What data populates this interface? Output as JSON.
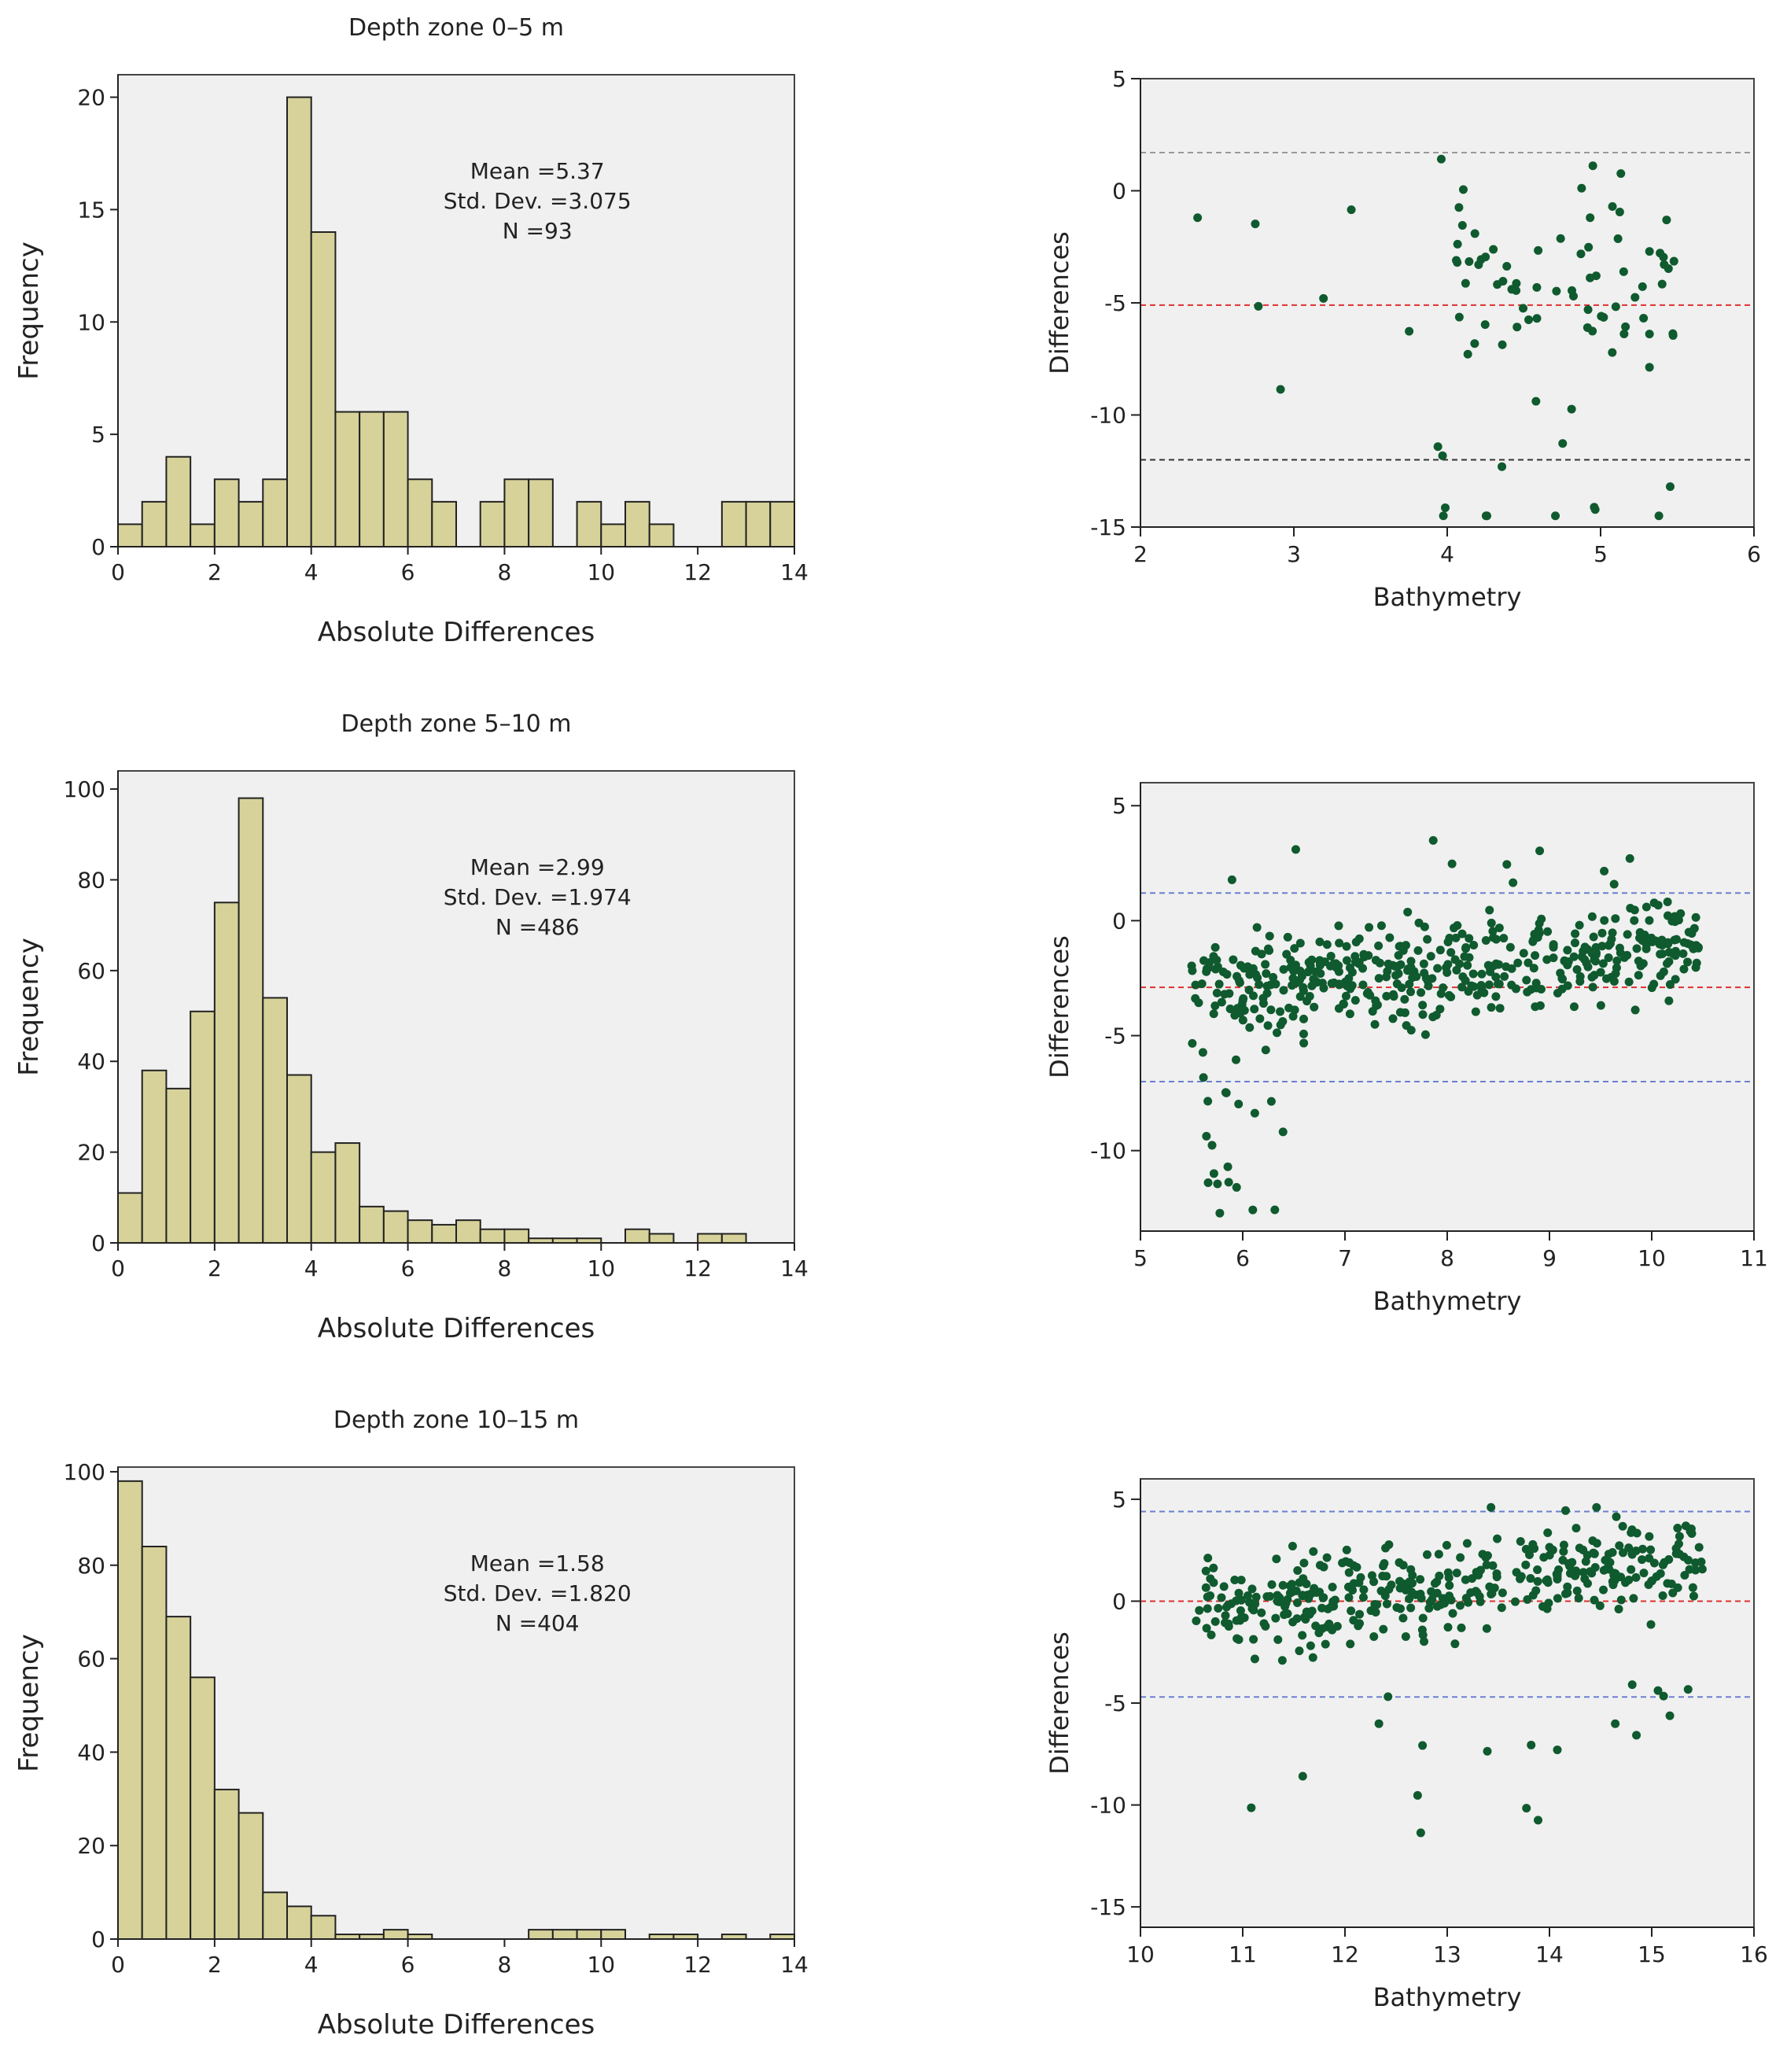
{
  "chart_data": [
    {
      "type": "bar",
      "title": "Depth zone 0–5 m",
      "xlabel": "Absolute Differences",
      "ylabel": "Frequency",
      "bin_width": 0.5,
      "x_start": 0,
      "values": [
        1,
        2,
        4,
        1,
        3,
        2,
        3,
        20,
        14,
        6,
        6,
        6,
        3,
        2,
        0,
        2,
        3,
        3,
        0,
        2,
        1,
        2,
        1,
        0,
        0,
        2,
        2,
        2
      ],
      "xlim": [
        0,
        14
      ],
      "ylim": [
        0,
        21
      ],
      "xticks": [
        "0",
        "2",
        "4",
        "6",
        "8",
        "10",
        "12",
        "14"
      ],
      "yticks": [
        "0",
        "5",
        "10",
        "15",
        "20"
      ],
      "stats": {
        "mean": "Mean =5.37",
        "std": "Std. Dev. =3.075",
        "n": "N =93"
      }
    },
    {
      "type": "scatter",
      "xlabel": "Bathymetry",
      "ylabel": "Differences",
      "xlim": [
        2,
        6
      ],
      "ylim": [
        -15,
        5
      ],
      "xticks": [
        "2",
        "3",
        "4",
        "5",
        "6"
      ],
      "yticks": [
        "5",
        "0",
        "-5",
        "-10",
        "-15"
      ],
      "reference_lines": [
        {
          "y": 1.7,
          "color": "#999999",
          "label": "upper"
        },
        {
          "y": -5.1,
          "color": "#e03030",
          "label": "mean"
        },
        {
          "y": -12.0,
          "color": "#333333",
          "label": "lower"
        }
      ],
      "points_seed": 1,
      "note": "93 points"
    },
    {
      "type": "bar",
      "title": "Depth zone 5–10 m",
      "xlabel": "Absolute Differences",
      "ylabel": "Frequency",
      "bin_width": 0.5,
      "x_start": 0,
      "values": [
        11,
        38,
        34,
        51,
        75,
        98,
        54,
        37,
        20,
        22,
        8,
        7,
        5,
        4,
        5,
        3,
        3,
        1,
        1,
        1,
        0,
        3,
        2,
        0,
        2,
        2,
        0,
        0
      ],
      "xlim": [
        0,
        14
      ],
      "ylim": [
        0,
        104
      ],
      "xticks": [
        "0",
        "2",
        "4",
        "6",
        "8",
        "10",
        "12",
        "14"
      ],
      "yticks": [
        "0",
        "20",
        "40",
        "60",
        "80",
        "100"
      ],
      "stats": {
        "mean": "Mean =2.99",
        "std": "Std. Dev. =1.974",
        "n": "N =486"
      }
    },
    {
      "type": "scatter",
      "xlabel": "Bathymetry",
      "ylabel": "Differences",
      "xlim": [
        5,
        11
      ],
      "ylim": [
        -13.5,
        6
      ],
      "xticks": [
        "5",
        "6",
        "7",
        "8",
        "9",
        "10",
        "11"
      ],
      "yticks": [
        "5",
        "0",
        "-5",
        "-10"
      ],
      "reference_lines": [
        {
          "y": 1.2,
          "color": "#6a7fd0",
          "label": "upper"
        },
        {
          "y": -2.9,
          "color": "#e03030",
          "label": "mean"
        },
        {
          "y": -7.0,
          "color": "#6a7fd0",
          "label": "lower"
        }
      ],
      "points_seed": 2,
      "note": "486 points"
    },
    {
      "type": "bar",
      "title": "Depth zone 10–15 m",
      "xlabel": "Absolute Differences",
      "ylabel": "Frequency",
      "bin_width": 0.5,
      "x_start": 0,
      "values": [
        98,
        84,
        69,
        56,
        32,
        27,
        10,
        7,
        5,
        1,
        1,
        2,
        1,
        0,
        0,
        0,
        0,
        2,
        2,
        2,
        2,
        0,
        1,
        1,
        0,
        1,
        0,
        1
      ],
      "xlim": [
        0,
        14
      ],
      "ylim": [
        0,
        101
      ],
      "xticks": [
        "0",
        "2",
        "4",
        "6",
        "8",
        "10",
        "12",
        "14"
      ],
      "yticks": [
        "0",
        "20",
        "40",
        "60",
        "80",
        "100"
      ],
      "stats": {
        "mean": "Mean =1.58",
        "std": "Std. Dev. =1.820",
        "n": "N =404"
      }
    },
    {
      "type": "scatter",
      "xlabel": "Bathymetry",
      "ylabel": "Differences",
      "xlim": [
        10,
        16
      ],
      "ylim": [
        -16,
        6
      ],
      "xticks": [
        "10",
        "11",
        "12",
        "13",
        "14",
        "15",
        "16"
      ],
      "yticks": [
        "5",
        "0",
        "-5",
        "-10",
        "-15"
      ],
      "reference_lines": [
        {
          "y": 4.4,
          "color": "#6a7fd0",
          "label": "upper"
        },
        {
          "y": 0.0,
          "color": "#e03030",
          "label": "mean"
        },
        {
          "y": -4.7,
          "color": "#6a7fd0",
          "label": "lower"
        }
      ],
      "points_seed": 3,
      "note": "404 points"
    }
  ]
}
